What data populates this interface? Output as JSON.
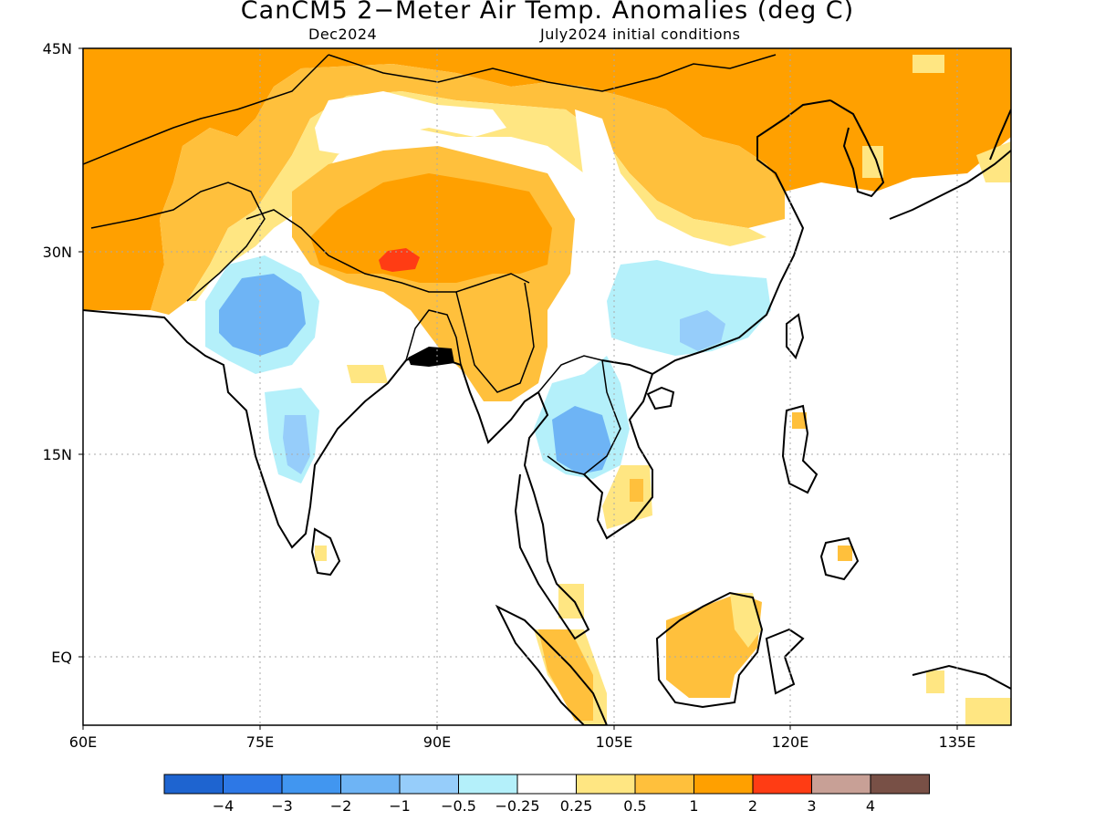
{
  "title": "CanCM5 2−Meter Air Temp. Anomalies (deg C)",
  "subtitle_left": "Dec2024",
  "subtitle_right": "July2024 initial conditions",
  "x_ticks": [
    "60E",
    "75E",
    "90E",
    "105E",
    "120E",
    "135E"
  ],
  "y_ticks": [
    "45N",
    "30N",
    "15N",
    "EQ"
  ],
  "colorbar": {
    "colors": [
      "#1e64d0",
      "#2d78e6",
      "#4196f0",
      "#6eb4f5",
      "#96cdfa",
      "#b4f0fa",
      "#ffffff",
      "#ffe682",
      "#ffc03c",
      "#ffa000",
      "#ff3c14",
      "#c8a096",
      "#785046"
    ],
    "labels": [
      "−4",
      "−3",
      "−2",
      "−1",
      "−0.5",
      "−0.25",
      "0.25",
      "0.5",
      "1",
      "2",
      "3",
      "4"
    ]
  },
  "map_colors": {
    "strong_orange": "#ffa000",
    "orange": "#ffc03c",
    "light_orange": "#ffe682",
    "red": "#ff3c14",
    "light_blue": "#b4f0fa",
    "blue": "#96cdfa",
    "mid_blue": "#6eb4f5"
  }
}
